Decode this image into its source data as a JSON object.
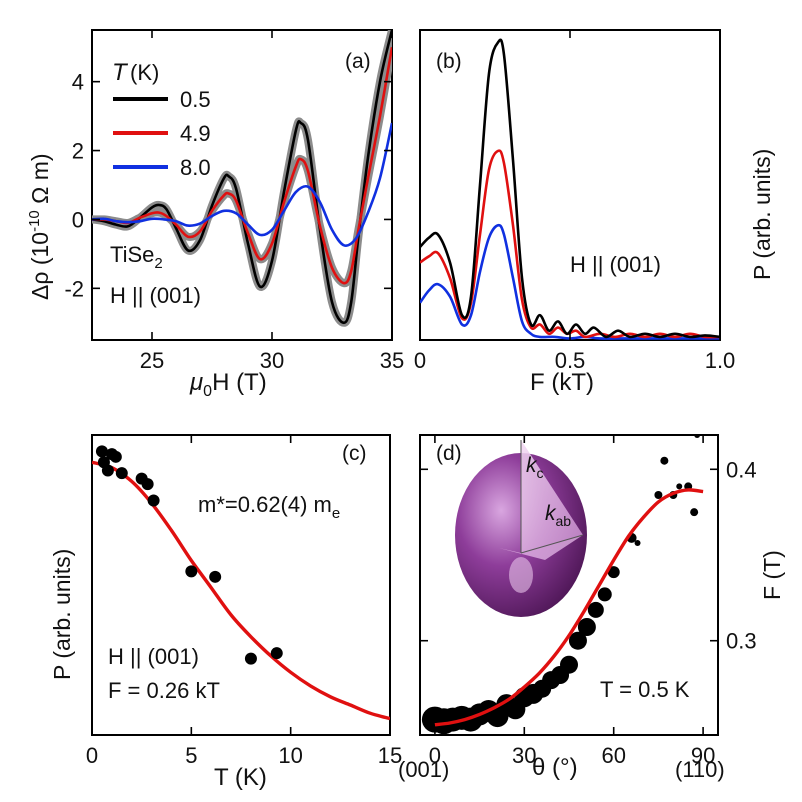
{
  "chart_data": [
    {
      "panel": "(a)",
      "type": "line",
      "xlabel_mu": "μ",
      "xlabel_sub": "0",
      "xlabel_rest": "H (T)",
      "ylabel_pre": "Δρ (10",
      "ylabel_sup": "-10",
      "ylabel_post": " Ω m)",
      "xlim": [
        22.5,
        35
      ],
      "ylim": [
        -3.5,
        5.5
      ],
      "xticks": [
        "25",
        "30",
        "35"
      ],
      "xtick_values": [
        25,
        30,
        35
      ],
      "yticks": [
        "-2",
        "0",
        "2",
        "4"
      ],
      "ytick_values": [
        -2,
        0,
        2,
        4
      ],
      "legend_title_T": "T",
      "legend_title_unit": "(K)",
      "annotation_material": "TiSe",
      "annotation_material_sub": "2",
      "annotation_field": "H ||  (001)",
      "series": [
        {
          "name": "0.5",
          "color": "#000000",
          "x": [
            22.5,
            23.0,
            23.5,
            24.0,
            24.5,
            25.0,
            25.3,
            25.6,
            26.0,
            26.5,
            27.0,
            27.5,
            28.0,
            28.2,
            28.5,
            29.0,
            29.5,
            30.0,
            30.5,
            31.0,
            31.2,
            31.5,
            32.0,
            32.5,
            33.0,
            33.3,
            33.6,
            34.0,
            34.5,
            35.0
          ],
          "y": [
            0.0,
            -0.05,
            -0.15,
            -0.2,
            0.05,
            0.35,
            0.42,
            0.3,
            -0.25,
            -0.9,
            -0.6,
            0.4,
            1.2,
            1.25,
            0.9,
            -0.7,
            -1.95,
            -1.2,
            0.8,
            2.6,
            2.8,
            2.3,
            -0.3,
            -2.4,
            -3.0,
            -2.4,
            -0.5,
            1.8,
            4.0,
            5.5
          ]
        },
        {
          "name": "4.9",
          "color": "#e01010",
          "x": [
            22.5,
            23.0,
            23.5,
            24.0,
            24.5,
            25.0,
            25.3,
            25.6,
            26.0,
            26.5,
            27.0,
            27.5,
            28.0,
            28.2,
            28.5,
            29.0,
            29.5,
            30.0,
            30.5,
            31.0,
            31.2,
            31.5,
            32.0,
            32.5,
            33.0,
            33.3,
            33.6,
            34.0,
            34.5,
            35.0
          ],
          "y": [
            0.0,
            0.0,
            -0.05,
            -0.1,
            0.05,
            0.18,
            0.2,
            0.1,
            -0.15,
            -0.5,
            -0.35,
            0.25,
            0.7,
            0.75,
            0.55,
            -0.4,
            -1.15,
            -0.7,
            0.5,
            1.55,
            1.75,
            1.4,
            -0.2,
            -1.4,
            -1.85,
            -1.5,
            -0.3,
            1.2,
            3.0,
            5.0
          ]
        },
        {
          "name": "8.0",
          "color": "#1030e0",
          "x": [
            22.5,
            23.0,
            23.5,
            24.0,
            24.5,
            25.0,
            25.5,
            26.0,
            26.5,
            27.0,
            27.5,
            28.0,
            28.5,
            29.0,
            29.5,
            30.0,
            30.5,
            31.0,
            31.5,
            32.0,
            32.5,
            33.0,
            33.5,
            34.0,
            34.5,
            35.0
          ],
          "y": [
            0.0,
            0.02,
            -0.05,
            -0.08,
            -0.05,
            0.02,
            0.0,
            -0.05,
            -0.18,
            -0.12,
            0.1,
            0.25,
            0.18,
            -0.15,
            -0.45,
            -0.3,
            0.25,
            0.8,
            0.95,
            0.5,
            -0.3,
            -0.75,
            -0.55,
            0.2,
            1.2,
            2.8
          ]
        }
      ],
      "fit_color": "#8c8c8c"
    },
    {
      "panel": "(b)",
      "type": "line",
      "xlabel": "F (kT)",
      "ylabel": "P (arb. units)",
      "xlim": [
        0,
        1.0
      ],
      "ylim": [
        0,
        1
      ],
      "xticks": [
        "0",
        "0.5",
        "1.0"
      ],
      "xtick_values": [
        0,
        0.5,
        1.0
      ],
      "annotation_field": "H ||  (001)",
      "series": [
        {
          "name": "0.5",
          "color": "#000000",
          "x": [
            0,
            0.03,
            0.06,
            0.1,
            0.14,
            0.17,
            0.2,
            0.23,
            0.26,
            0.28,
            0.31,
            0.34,
            0.37,
            0.4,
            0.43,
            0.46,
            0.49,
            0.52,
            0.55,
            0.58,
            0.62,
            0.66,
            0.7,
            0.75,
            0.8,
            0.85,
            0.9,
            0.95,
            1.0
          ],
          "y": [
            0.3,
            0.33,
            0.34,
            0.25,
            0.08,
            0.14,
            0.5,
            0.86,
            0.96,
            0.92,
            0.58,
            0.2,
            0.05,
            0.08,
            0.03,
            0.06,
            0.02,
            0.05,
            0.02,
            0.04,
            0.01,
            0.03,
            0.01,
            0.02,
            0.01,
            0.02,
            0.01,
            0.015,
            0.01
          ]
        },
        {
          "name": "4.9",
          "color": "#e01010",
          "x": [
            0,
            0.03,
            0.06,
            0.1,
            0.14,
            0.17,
            0.2,
            0.23,
            0.26,
            0.28,
            0.31,
            0.34,
            0.37,
            0.4,
            0.43,
            0.46,
            0.49,
            0.52,
            0.55,
            0.6,
            0.65,
            0.7,
            0.75,
            0.8,
            0.85,
            0.9,
            0.95,
            1.0
          ],
          "y": [
            0.25,
            0.27,
            0.28,
            0.2,
            0.07,
            0.12,
            0.34,
            0.55,
            0.61,
            0.57,
            0.37,
            0.13,
            0.04,
            0.05,
            0.02,
            0.04,
            0.02,
            0.03,
            0.01,
            0.02,
            0.01,
            0.02,
            0.01,
            0.02,
            0.01,
            0.02,
            0.01,
            0.01
          ]
        },
        {
          "name": "8.0",
          "color": "#1030e0",
          "x": [
            0,
            0.03,
            0.06,
            0.1,
            0.14,
            0.17,
            0.2,
            0.23,
            0.26,
            0.28,
            0.31,
            0.34,
            0.37,
            0.4,
            0.45,
            0.5,
            0.55,
            0.6,
            0.7,
            0.8,
            0.9,
            1.0
          ],
          "y": [
            0.12,
            0.16,
            0.18,
            0.14,
            0.05,
            0.08,
            0.22,
            0.33,
            0.37,
            0.34,
            0.2,
            0.06,
            0.02,
            0.01,
            0.01,
            0.005,
            0.01,
            0.005,
            0.005,
            0.005,
            0.005,
            0.005
          ]
        }
      ]
    },
    {
      "panel": "(c)",
      "type": "scatter",
      "xlabel": "T (K)",
      "ylabel": "P (arb. units)",
      "xlim": [
        0,
        15
      ],
      "ylim": [
        0,
        1.1
      ],
      "xticks": [
        "0",
        "5",
        "10",
        "15"
      ],
      "xtick_values": [
        0,
        5,
        10,
        15
      ],
      "annotation_mass_pre": "m*=0.62(4) m",
      "annotation_mass_sub": "e",
      "annotation_field": "H ||  (001)",
      "annotation_freq": "F = 0.26 kT",
      "points": {
        "x": [
          0.5,
          0.6,
          0.8,
          1.0,
          1.2,
          1.5,
          2.5,
          2.8,
          3.1,
          5.0,
          6.2,
          8.0,
          9.3
        ],
        "y": [
          1.04,
          1.0,
          0.97,
          1.03,
          1.02,
          0.96,
          0.94,
          0.92,
          0.86,
          0.6,
          0.58,
          0.28,
          0.3
        ]
      },
      "fit": {
        "color": "#e01010",
        "x": [
          0,
          1,
          2,
          3,
          4,
          5,
          6,
          7,
          8,
          9,
          10,
          11,
          12,
          13,
          14,
          15
        ],
        "y": [
          1.0,
          0.98,
          0.93,
          0.85,
          0.75,
          0.64,
          0.54,
          0.44,
          0.36,
          0.29,
          0.23,
          0.18,
          0.14,
          0.11,
          0.08,
          0.06
        ]
      }
    },
    {
      "panel": "(d)",
      "type": "scatter",
      "xlabel": "θ (°)",
      "ylabel": "F (T)",
      "xlim": [
        -5,
        95
      ],
      "ylim": [
        0.245,
        0.42
      ],
      "xticks": [
        "0",
        "30",
        "60",
        "90"
      ],
      "xtick_values": [
        0,
        30,
        60,
        90
      ],
      "yticks": [
        "0.3",
        "0.4"
      ],
      "ytick_values": [
        0.3,
        0.4
      ],
      "dir_left": "(001)",
      "dir_right": "(110)",
      "annotation_temp": "T = 0.5 K",
      "inset_kc": "k",
      "inset_kc_sub": "c",
      "inset_kab": "k",
      "inset_kab_sub": "ab",
      "points": {
        "x": [
          0,
          3,
          6,
          9,
          12,
          15,
          18,
          21,
          24,
          27,
          30,
          33,
          36,
          39,
          42,
          45,
          48,
          51,
          54,
          57,
          60,
          66,
          68,
          75,
          77,
          80,
          82,
          85,
          87,
          88
        ],
        "y": [
          0.254,
          0.253,
          0.254,
          0.255,
          0.254,
          0.257,
          0.259,
          0.256,
          0.263,
          0.26,
          0.267,
          0.269,
          0.272,
          0.277,
          0.28,
          0.286,
          0.3,
          0.308,
          0.318,
          0.327,
          0.34,
          0.36,
          0.357,
          0.385,
          0.405,
          0.385,
          0.39,
          0.39,
          0.375,
          0.42
        ],
        "size": [
          13,
          13,
          12,
          12,
          12,
          11,
          11,
          11,
          10,
          10,
          10,
          10,
          9,
          9,
          9,
          9,
          9,
          9,
          8,
          7,
          6,
          5,
          3,
          4,
          4,
          4,
          3,
          4,
          4,
          3
        ]
      },
      "fit": {
        "color": "#e01010",
        "x": [
          0,
          5,
          10,
          15,
          20,
          25,
          30,
          35,
          40,
          45,
          50,
          55,
          60,
          65,
          70,
          75,
          80,
          85,
          90
        ],
        "y": [
          0.251,
          0.252,
          0.254,
          0.257,
          0.261,
          0.266,
          0.273,
          0.281,
          0.291,
          0.303,
          0.317,
          0.332,
          0.347,
          0.361,
          0.372,
          0.381,
          0.386,
          0.388,
          0.387
        ]
      }
    }
  ]
}
